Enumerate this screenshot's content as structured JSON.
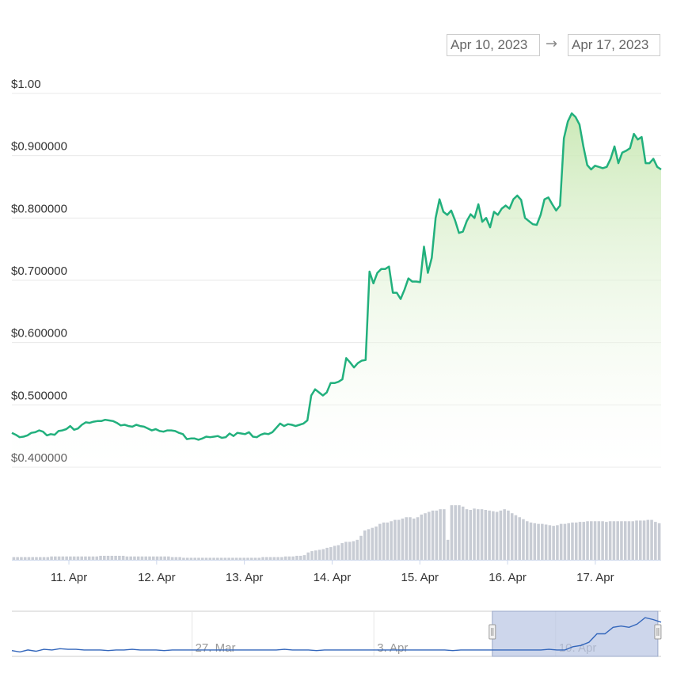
{
  "range_selector": {
    "from": "Apr 10, 2023",
    "arrow": "→",
    "to": "Apr 17, 2023"
  },
  "colors": {
    "price_line": "#22b07d",
    "area_top": "#c9e8b4",
    "volume_bar": "#c8ccd4",
    "navigator_line": "#3366bb",
    "navigator_mask": "#b8c4e2",
    "grid": "#e8e8e8",
    "axis_text": "#333333"
  },
  "chart_data": {
    "type": "line",
    "ylim": [
      0.4,
      1.0
    ],
    "y_ticks": [
      {
        "value": 1.0,
        "label": "$1.00"
      },
      {
        "value": 0.9,
        "label": "$0.900000"
      },
      {
        "value": 0.8,
        "label": "$0.800000"
      },
      {
        "value": 0.7,
        "label": "$0.700000"
      },
      {
        "value": 0.6,
        "label": "$0.600000"
      },
      {
        "value": 0.5,
        "label": "$0.500000"
      },
      {
        "value": 0.4,
        "label": "$0.400000"
      }
    ],
    "x_range": [
      0,
      7.4
    ],
    "x_ticks": [
      {
        "value": 0.65,
        "label": "11. Apr"
      },
      {
        "value": 1.65,
        "label": "12. Apr"
      },
      {
        "value": 2.65,
        "label": "13. Apr"
      },
      {
        "value": 3.65,
        "label": "14. Apr"
      },
      {
        "value": 4.65,
        "label": "15. Apr"
      },
      {
        "value": 5.65,
        "label": "16. Apr"
      },
      {
        "value": 6.65,
        "label": "17. Apr"
      }
    ],
    "price": [
      0.455,
      0.452,
      0.448,
      0.449,
      0.451,
      0.455,
      0.456,
      0.459,
      0.457,
      0.451,
      0.453,
      0.452,
      0.458,
      0.459,
      0.461,
      0.466,
      0.46,
      0.462,
      0.468,
      0.472,
      0.471,
      0.473,
      0.474,
      0.474,
      0.476,
      0.475,
      0.474,
      0.471,
      0.467,
      0.468,
      0.466,
      0.465,
      0.468,
      0.466,
      0.465,
      0.462,
      0.459,
      0.461,
      0.458,
      0.457,
      0.459,
      0.459,
      0.458,
      0.455,
      0.453,
      0.445,
      0.446,
      0.446,
      0.444,
      0.446,
      0.449,
      0.448,
      0.449,
      0.45,
      0.447,
      0.448,
      0.454,
      0.45,
      0.455,
      0.454,
      0.453,
      0.456,
      0.449,
      0.448,
      0.452,
      0.454,
      0.453,
      0.456,
      0.463,
      0.47,
      0.466,
      0.469,
      0.468,
      0.466,
      0.468,
      0.47,
      0.475,
      0.515,
      0.525,
      0.52,
      0.515,
      0.52,
      0.535,
      0.535,
      0.537,
      0.541,
      0.575,
      0.568,
      0.56,
      0.567,
      0.571,
      0.572,
      0.714,
      0.695,
      0.712,
      0.718,
      0.718,
      0.722,
      0.68,
      0.68,
      0.67,
      0.685,
      0.703,
      0.698,
      0.698,
      0.697,
      0.754,
      0.712,
      0.736,
      0.8,
      0.83,
      0.81,
      0.805,
      0.812,
      0.796,
      0.776,
      0.778,
      0.795,
      0.806,
      0.8,
      0.822,
      0.794,
      0.8,
      0.785,
      0.81,
      0.805,
      0.815,
      0.82,
      0.815,
      0.83,
      0.836,
      0.829,
      0.8,
      0.795,
      0.79,
      0.789,
      0.805,
      0.83,
      0.833,
      0.822,
      0.812,
      0.82,
      0.928,
      0.955,
      0.968,
      0.962,
      0.95,
      0.915,
      0.885,
      0.878,
      0.884,
      0.882,
      0.88,
      0.882,
      0.895,
      0.915,
      0.888,
      0.905,
      0.908,
      0.912,
      0.935,
      0.926,
      0.93,
      0.888,
      0.888,
      0.895,
      0.882,
      0.878
    ],
    "volume_relative": [
      0.04,
      0.04,
      0.04,
      0.04,
      0.04,
      0.04,
      0.04,
      0.04,
      0.04,
      0.04,
      0.05,
      0.05,
      0.05,
      0.05,
      0.05,
      0.05,
      0.05,
      0.05,
      0.05,
      0.05,
      0.05,
      0.05,
      0.05,
      0.06,
      0.06,
      0.06,
      0.06,
      0.06,
      0.06,
      0.06,
      0.05,
      0.05,
      0.05,
      0.05,
      0.05,
      0.05,
      0.05,
      0.05,
      0.05,
      0.05,
      0.05,
      0.05,
      0.04,
      0.04,
      0.04,
      0.03,
      0.03,
      0.03,
      0.03,
      0.03,
      0.03,
      0.03,
      0.03,
      0.03,
      0.03,
      0.03,
      0.03,
      0.03,
      0.03,
      0.03,
      0.03,
      0.03,
      0.03,
      0.03,
      0.03,
      0.03,
      0.04,
      0.04,
      0.04,
      0.04,
      0.04,
      0.04,
      0.05,
      0.05,
      0.05,
      0.06,
      0.06,
      0.07,
      0.11,
      0.13,
      0.14,
      0.15,
      0.16,
      0.18,
      0.19,
      0.21,
      0.22,
      0.25,
      0.27,
      0.27,
      0.28,
      0.3,
      0.36,
      0.44,
      0.46,
      0.48,
      0.5,
      0.54,
      0.56,
      0.56,
      0.58,
      0.6,
      0.6,
      0.62,
      0.64,
      0.64,
      0.62,
      0.64,
      0.68,
      0.7,
      0.72,
      0.74,
      0.74,
      0.76,
      0.76,
      0.3,
      0.82,
      0.82,
      0.82,
      0.8,
      0.76,
      0.75,
      0.77,
      0.76,
      0.76,
      0.75,
      0.74,
      0.73,
      0.72,
      0.74,
      0.76,
      0.74,
      0.7,
      0.67,
      0.64,
      0.61,
      0.58,
      0.56,
      0.55,
      0.54,
      0.54,
      0.53,
      0.52,
      0.51,
      0.52,
      0.54,
      0.54,
      0.55,
      0.56,
      0.56,
      0.57,
      0.57,
      0.58,
      0.58,
      0.58,
      0.58,
      0.58,
      0.57,
      0.58,
      0.58,
      0.58,
      0.58,
      0.58,
      0.58,
      0.58,
      0.59,
      0.59,
      0.59,
      0.6,
      0.6,
      0.57,
      0.55
    ],
    "navigator": {
      "x_ticks": [
        {
          "value": 0.28,
          "label": "27. Mar"
        },
        {
          "value": 0.56,
          "label": "3. Apr"
        },
        {
          "value": 0.84,
          "label": "10. Apr"
        }
      ],
      "selection": [
        0.74,
        0.995
      ],
      "price": [
        0.44,
        0.42,
        0.45,
        0.43,
        0.46,
        0.45,
        0.47,
        0.46,
        0.46,
        0.45,
        0.45,
        0.45,
        0.44,
        0.45,
        0.45,
        0.46,
        0.45,
        0.45,
        0.45,
        0.44,
        0.45,
        0.45,
        0.45,
        0.45,
        0.45,
        0.45,
        0.45,
        0.45,
        0.45,
        0.45,
        0.45,
        0.45,
        0.45,
        0.45,
        0.46,
        0.45,
        0.45,
        0.45,
        0.44,
        0.45,
        0.45,
        0.45,
        0.45,
        0.45,
        0.45,
        0.45,
        0.45,
        0.45,
        0.45,
        0.45,
        0.45,
        0.45,
        0.45,
        0.45,
        0.45,
        0.44,
        0.45,
        0.45,
        0.45,
        0.45,
        0.45,
        0.45,
        0.45,
        0.45,
        0.45,
        0.45,
        0.45,
        0.46,
        0.45,
        0.45,
        0.5,
        0.52,
        0.57,
        0.7,
        0.7,
        0.8,
        0.82,
        0.8,
        0.85,
        0.95,
        0.92,
        0.88
      ]
    }
  }
}
